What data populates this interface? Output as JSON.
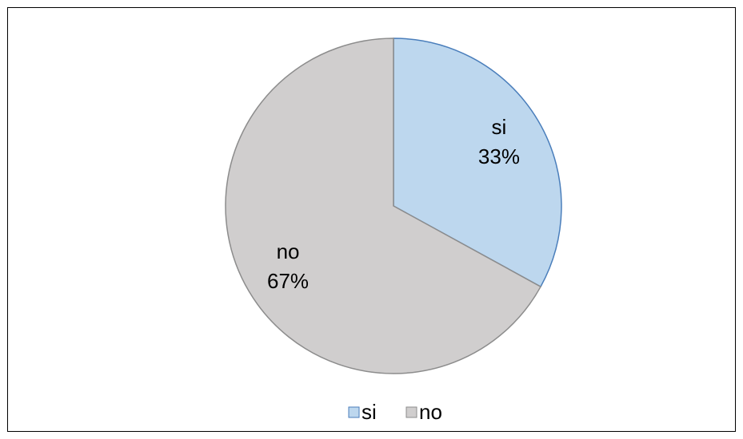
{
  "chart_data": {
    "type": "pie",
    "categories": [
      "si",
      "no"
    ],
    "values": [
      33,
      67
    ],
    "value_labels": [
      "33%",
      "67%"
    ],
    "colors": [
      "#bdd7ee",
      "#d0cece"
    ],
    "edgecolors": [
      "#4a7ebb",
      "#8c8c8c"
    ],
    "legend": "bottom"
  }
}
